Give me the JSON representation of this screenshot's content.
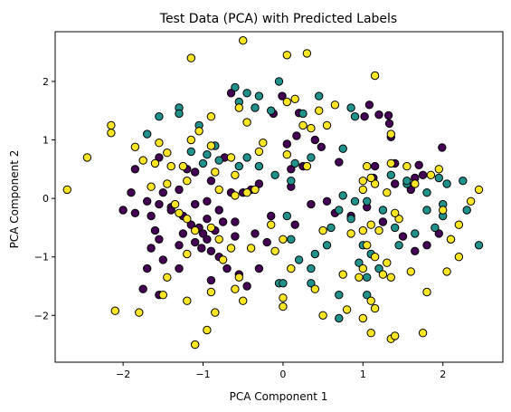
{
  "chart_data": {
    "type": "scatter",
    "title": "Test Data (PCA) with Predicted Labels",
    "xlabel": "PCA Component 1",
    "ylabel": "PCA Component 2",
    "xlim": [
      -2.85,
      2.75
    ],
    "ylim": [
      -2.8,
      2.85
    ],
    "xticks": [
      -2,
      -1,
      0,
      1,
      2
    ],
    "yticks": [
      -2,
      -1,
      0,
      1,
      2
    ],
    "xtick_labels": [
      "−2",
      "−1",
      "0",
      "1",
      "2"
    ],
    "ytick_labels": [
      "−2",
      "−1",
      "0",
      "1",
      "2"
    ],
    "grid": false,
    "colors": {
      "0": "#440154",
      "1": "#21918c",
      "2": "#fde725"
    },
    "marker_edge_color": "#000000",
    "series": [
      {
        "label_id": 0,
        "points": [
          [
            -0.65,
            1.8
          ],
          [
            -0.12,
            1.45
          ],
          [
            -0.01,
            1.75
          ],
          [
            0.2,
            1.46
          ],
          [
            1.08,
            1.6
          ],
          [
            1.02,
            1.4
          ],
          [
            1.2,
            1.43
          ],
          [
            1.32,
            1.42
          ],
          [
            1.33,
            1.28
          ],
          [
            1.35,
            1.05
          ],
          [
            1.99,
            0.87
          ],
          [
            0.4,
            1.0
          ],
          [
            0.48,
            0.88
          ],
          [
            0.17,
            1.07
          ],
          [
            0.05,
            0.93
          ],
          [
            0.1,
            0.5
          ],
          [
            0.25,
            0.55
          ],
          [
            1.15,
            0.55
          ],
          [
            1.4,
            0.6
          ],
          [
            1.7,
            0.57
          ],
          [
            1.75,
            0.4
          ],
          [
            1.13,
            0.35
          ],
          [
            1.4,
            0.25
          ],
          [
            1.6,
            0.15
          ],
          [
            1.65,
            0.35
          ],
          [
            0.7,
            0.62
          ],
          [
            -1.55,
            0.7
          ],
          [
            -1.85,
            0.5
          ],
          [
            -1.2,
            0.5
          ],
          [
            -1.1,
            0.45
          ],
          [
            -0.73,
            0.7
          ],
          [
            -0.9,
            0.3
          ],
          [
            -1.3,
            0.15
          ],
          [
            -1.5,
            0.1
          ],
          [
            -1.9,
            0.1
          ],
          [
            -1.7,
            -0.05
          ],
          [
            -1.55,
            -0.1
          ],
          [
            -1.4,
            -0.15
          ],
          [
            -1.25,
            -0.3
          ],
          [
            -1.1,
            -0.1
          ],
          [
            -0.95,
            -0.05
          ],
          [
            -0.8,
            -0.2
          ],
          [
            -0.65,
            0.1
          ],
          [
            -0.6,
            -0.4
          ],
          [
            -0.5,
            0.1
          ],
          [
            -0.4,
            0.15
          ],
          [
            -0.3,
            0.25
          ],
          [
            -0.15,
            -0.3
          ],
          [
            -1.15,
            -0.45
          ],
          [
            -1.05,
            -0.5
          ],
          [
            -1.0,
            -0.6
          ],
          [
            -0.95,
            -0.7
          ],
          [
            -0.85,
            -0.55
          ],
          [
            -0.75,
            -0.4
          ],
          [
            -1.1,
            -0.75
          ],
          [
            -1.02,
            -0.85
          ],
          [
            -0.9,
            -0.9
          ],
          [
            -0.6,
            -0.65
          ],
          [
            -0.8,
            -1.0
          ],
          [
            -0.7,
            -1.2
          ],
          [
            -0.55,
            -1.3
          ],
          [
            -1.3,
            -0.8
          ],
          [
            -1.6,
            -0.55
          ],
          [
            -1.55,
            -0.7
          ],
          [
            -1.65,
            -0.85
          ],
          [
            -1.5,
            -1.05
          ],
          [
            -1.3,
            -1.2
          ],
          [
            -1.7,
            -1.2
          ],
          [
            -2.0,
            -0.2
          ],
          [
            -1.85,
            -0.25
          ],
          [
            -1.65,
            -0.3
          ],
          [
            -1.4,
            -0.2
          ],
          [
            -1.25,
            -0.6
          ],
          [
            -0.95,
            -0.35
          ],
          [
            -0.35,
            -0.6
          ],
          [
            -0.2,
            -0.75
          ],
          [
            0.15,
            -0.45
          ],
          [
            0.35,
            -0.1
          ],
          [
            0.55,
            -0.05
          ],
          [
            0.65,
            -0.25
          ],
          [
            0.85,
            -0.3
          ],
          [
            1.05,
            -0.15
          ],
          [
            1.25,
            -0.4
          ],
          [
            1.5,
            -0.65
          ],
          [
            1.65,
            -0.9
          ],
          [
            1.8,
            -0.8
          ],
          [
            1.95,
            -0.6
          ],
          [
            0.1,
            0.2
          ],
          [
            -1.75,
            -1.55
          ],
          [
            -1.55,
            -1.65
          ],
          [
            -0.9,
            -1.4
          ],
          [
            -0.45,
            -1.5
          ],
          [
            -0.3,
            -1.2
          ]
        ]
      },
      {
        "label_id": 1,
        "points": [
          [
            -0.05,
            2.0
          ],
          [
            -0.3,
            1.75
          ],
          [
            -0.45,
            1.8
          ],
          [
            -0.6,
            1.9
          ],
          [
            -0.55,
            1.65
          ],
          [
            -0.35,
            1.55
          ],
          [
            -0.15,
            1.5
          ],
          [
            0.45,
            1.75
          ],
          [
            0.85,
            1.55
          ],
          [
            0.9,
            1.4
          ],
          [
            0.25,
            1.45
          ],
          [
            -1.3,
            1.55
          ],
          [
            -1.7,
            1.1
          ],
          [
            -1.55,
            1.4
          ],
          [
            -1.3,
            1.45
          ],
          [
            -1.05,
            1.25
          ],
          [
            -0.85,
            0.9
          ],
          [
            -0.95,
            0.75
          ],
          [
            -1.15,
            0.8
          ],
          [
            -1.0,
            0.6
          ],
          [
            -0.8,
            0.65
          ],
          [
            -0.55,
            0.55
          ],
          [
            -0.45,
            0.7
          ],
          [
            -0.3,
            0.55
          ],
          [
            0.15,
            0.6
          ],
          [
            0.35,
            0.7
          ],
          [
            0.75,
            0.85
          ],
          [
            1.35,
            0.4
          ],
          [
            1.55,
            0.25
          ],
          [
            1.95,
            0.35
          ],
          [
            1.8,
            0.1
          ],
          [
            2.05,
            0.25
          ],
          [
            2.25,
            0.3
          ],
          [
            1.55,
            0.3
          ],
          [
            1.25,
            -0.2
          ],
          [
            1.05,
            -0.05
          ],
          [
            0.85,
            -0.35
          ],
          [
            0.7,
            -0.2
          ],
          [
            0.75,
            0.05
          ],
          [
            0.6,
            -0.5
          ],
          [
            0.55,
            -0.8
          ],
          [
            0.4,
            -0.95
          ],
          [
            0.35,
            -1.2
          ],
          [
            1.0,
            -0.8
          ],
          [
            1.1,
            -0.95
          ],
          [
            0.95,
            -1.1
          ],
          [
            1.2,
            -1.2
          ],
          [
            1.45,
            -0.8
          ],
          [
            1.65,
            -0.6
          ],
          [
            1.9,
            -0.5
          ],
          [
            2.0,
            -0.3
          ],
          [
            1.8,
            -0.2
          ],
          [
            2.1,
            -0.7
          ],
          [
            2.45,
            -0.8
          ],
          [
            2.3,
            -0.2
          ],
          [
            2.0,
            -0.1
          ],
          [
            0.05,
            -0.3
          ],
          [
            0.1,
            -0.7
          ],
          [
            -0.05,
            -1.45
          ],
          [
            0.0,
            -1.45
          ],
          [
            0.35,
            -1.45
          ],
          [
            0.7,
            -1.65
          ],
          [
            0.7,
            -2.05
          ],
          [
            1.05,
            -1.35
          ],
          [
            1.05,
            -1.65
          ],
          [
            0.1,
            0.3
          ],
          [
            -0.1,
            0.4
          ],
          [
            0.2,
            -1.05
          ],
          [
            0.9,
            -0.05
          ],
          [
            1.4,
            -0.5
          ]
        ]
      },
      {
        "label_id": 2,
        "points": [
          [
            -2.7,
            0.15
          ],
          [
            -2.45,
            0.7
          ],
          [
            -2.15,
            1.25
          ],
          [
            -2.15,
            1.12
          ],
          [
            -2.1,
            -1.92
          ],
          [
            -1.85,
            0.88
          ],
          [
            -1.75,
            0.65
          ],
          [
            -1.6,
            0.6
          ],
          [
            -1.5,
            -1.65
          ],
          [
            -1.8,
            -1.95
          ],
          [
            -1.55,
            0.95
          ],
          [
            -1.45,
            0.78
          ],
          [
            -1.4,
            0.55
          ],
          [
            -1.25,
            0.55
          ],
          [
            -1.2,
            0.3
          ],
          [
            -1.15,
            1.0
          ],
          [
            -1.05,
            1.15
          ],
          [
            -0.9,
            0.9
          ],
          [
            -0.85,
            0.45
          ],
          [
            -0.65,
            0.7
          ],
          [
            -0.6,
            0.4
          ],
          [
            -0.8,
            0.15
          ],
          [
            -0.6,
            0.05
          ],
          [
            -0.45,
            0.1
          ],
          [
            -0.35,
            0.15
          ],
          [
            -1.15,
            2.4
          ],
          [
            -0.9,
            1.4
          ],
          [
            -1.65,
            0.2
          ],
          [
            -1.45,
            0.25
          ],
          [
            -1.35,
            -0.1
          ],
          [
            -1.3,
            -0.25
          ],
          [
            -1.2,
            -0.35
          ],
          [
            -0.9,
            -0.5
          ],
          [
            -0.8,
            -0.7
          ],
          [
            -0.65,
            -0.85
          ],
          [
            -1.1,
            -0.55
          ],
          [
            -1.2,
            -0.95
          ],
          [
            -0.75,
            -1.05
          ],
          [
            -0.55,
            -1.35
          ],
          [
            -0.9,
            -1.6
          ],
          [
            -0.85,
            -1.95
          ],
          [
            -0.6,
            -1.55
          ],
          [
            -0.5,
            -1.75
          ],
          [
            -0.95,
            -2.25
          ],
          [
            -1.1,
            -2.5
          ],
          [
            -1.2,
            -1.75
          ],
          [
            -1.45,
            -1.35
          ],
          [
            -0.45,
            1.3
          ],
          [
            -0.55,
            1.55
          ],
          [
            -0.3,
            0.8
          ],
          [
            -0.4,
            -0.85
          ],
          [
            0.0,
            -1.85
          ],
          [
            0.0,
            -1.7
          ],
          [
            0.0,
            -0.7
          ],
          [
            -0.1,
            -0.9
          ],
          [
            0.05,
            2.45
          ],
          [
            -0.5,
            2.7
          ],
          [
            0.3,
            2.48
          ],
          [
            0.55,
            1.25
          ],
          [
            0.65,
            1.6
          ],
          [
            0.45,
            1.5
          ],
          [
            0.35,
            1.2
          ],
          [
            0.15,
            1.7
          ],
          [
            0.05,
            1.65
          ],
          [
            0.25,
            1.25
          ],
          [
            0.05,
            0.75
          ],
          [
            0.3,
            0.55
          ],
          [
            -0.25,
            0.95
          ],
          [
            -0.15,
            -0.45
          ],
          [
            0.4,
            -1.55
          ],
          [
            0.5,
            -2.0
          ],
          [
            0.75,
            -1.3
          ],
          [
            0.85,
            -0.6
          ],
          [
            1.0,
            -0.55
          ],
          [
            1.1,
            -0.45
          ],
          [
            1.05,
            -0.8
          ],
          [
            1.0,
            -1.2
          ],
          [
            0.95,
            -1.35
          ],
          [
            1.15,
            -1.0
          ],
          [
            1.3,
            -1.1
          ],
          [
            1.25,
            -1.3
          ],
          [
            1.35,
            -1.35
          ],
          [
            1.6,
            -1.25
          ],
          [
            1.8,
            -1.6
          ],
          [
            2.05,
            -1.25
          ],
          [
            2.2,
            -1.0
          ],
          [
            2.1,
            -0.7
          ],
          [
            1.2,
            -0.55
          ],
          [
            1.45,
            -0.35
          ],
          [
            1.35,
            0.6
          ],
          [
            1.05,
            0.55
          ],
          [
            1.0,
            0.3
          ],
          [
            1.15,
            0.25
          ],
          [
            1.3,
            0.1
          ],
          [
            1.1,
            0.35
          ],
          [
            1.55,
            0.55
          ],
          [
            1.65,
            0.25
          ],
          [
            1.85,
            0.4
          ],
          [
            2.0,
            -0.2
          ],
          [
            2.2,
            -0.45
          ],
          [
            2.35,
            -0.05
          ],
          [
            2.45,
            0.15
          ],
          [
            1.95,
            0.5
          ],
          [
            1.4,
            -0.25
          ],
          [
            1.1,
            -1.75
          ],
          [
            1.15,
            -1.88
          ],
          [
            1.0,
            -2.05
          ],
          [
            1.1,
            -2.3
          ],
          [
            1.35,
            -2.4
          ],
          [
            1.4,
            -2.35
          ],
          [
            1.75,
            -2.3
          ],
          [
            1.15,
            2.1
          ],
          [
            1.35,
            1.1
          ],
          [
            1.0,
            0.15
          ],
          [
            0.5,
            -0.55
          ],
          [
            0.1,
            -1.2
          ],
          [
            0.8,
            -1.9
          ]
        ]
      }
    ]
  }
}
